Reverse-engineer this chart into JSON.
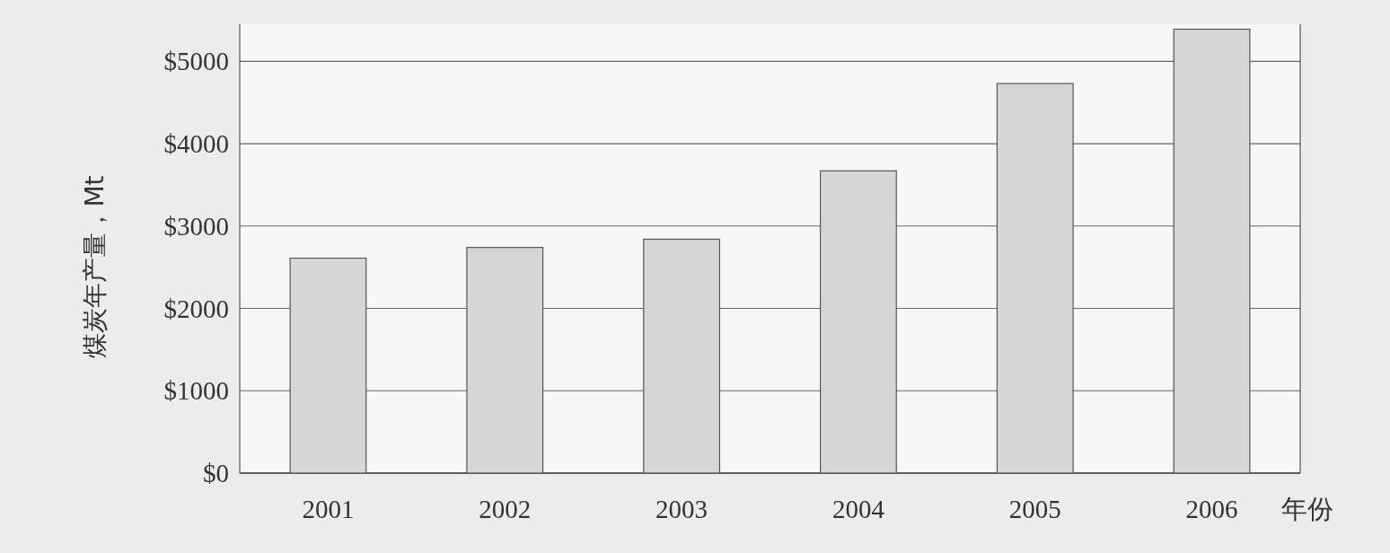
{
  "chart_data": {
    "type": "bar",
    "xlabel": "年份",
    "ylabel": "煤炭年产量，Mt",
    "categories": [
      "2001",
      "2002",
      "2003",
      "2004",
      "2005",
      "2006"
    ],
    "values": [
      2610,
      2740,
      2840,
      3670,
      4730,
      5390
    ],
    "color": "#d6d6d6",
    "ylim": [
      0,
      5450
    ],
    "yticks": [
      {
        "value": 0,
        "label": "$0"
      },
      {
        "value": 1000,
        "label": "$1000"
      },
      {
        "value": 2000,
        "label": "$2000"
      },
      {
        "value": 3000,
        "label": "$3000"
      },
      {
        "value": 4000,
        "label": "$4000"
      },
      {
        "value": 5000,
        "label": "$5000"
      }
    ],
    "grid": "y"
  }
}
